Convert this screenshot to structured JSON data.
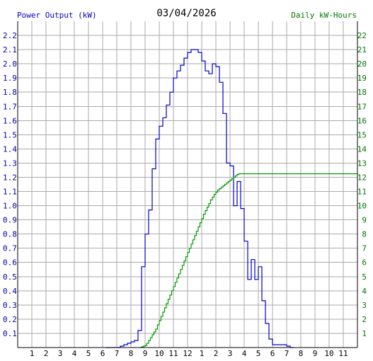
{
  "header": {
    "left_title": "Power Output (kW)",
    "date": "03/04/2026",
    "right_title": "Daily kW-Hours"
  },
  "colors": {
    "power": "#0000cc",
    "energy": "#009900",
    "grid": "#aaaaaa",
    "axis": "#000000",
    "left_axis_text": "#0000aa",
    "right_axis_text": "#007700",
    "x_axis_text": "#000000"
  },
  "chart_data": {
    "type": "line",
    "title": "03/04/2026",
    "x_tick_labels": [
      "1",
      "2",
      "3",
      "4",
      "5",
      "6",
      "7",
      "8",
      "9",
      "10",
      "11",
      "12",
      "1",
      "2",
      "3",
      "4",
      "5",
      "6",
      "7",
      "8",
      "9",
      "10",
      "11"
    ],
    "x_range_hours": [
      0,
      23.5
    ],
    "grid": true,
    "left_axis": {
      "label": "Power Output (kW)",
      "range": [
        0,
        2.3
      ],
      "ticks": [
        "0.1",
        "0.2",
        "0.3",
        "0.4",
        "0.5",
        "0.6",
        "0.7",
        "0.8",
        "0.9",
        "1.0",
        "1.1",
        "1.2",
        "1.3",
        "1.4",
        "1.5",
        "1.6",
        "1.7",
        "1.8",
        "1.9",
        "2.0",
        "2.1",
        "2.2"
      ]
    },
    "right_axis": {
      "label": "Daily kW-Hours",
      "range": [
        0,
        23
      ],
      "ticks": [
        "1",
        "2",
        "3",
        "4",
        "5",
        "6",
        "7",
        "8",
        "9",
        "10",
        "11",
        "12",
        "13",
        "14",
        "15",
        "16",
        "17",
        "18",
        "19",
        "20",
        "21",
        "22"
      ]
    },
    "series": [
      {
        "name": "Power Output (kW)",
        "axis": "left",
        "step": 0.25,
        "start_hour": 6.25,
        "values": [
          0.0,
          0.0,
          0.0,
          0.0,
          0.01,
          0.02,
          0.03,
          0.04,
          0.05,
          0.12,
          0.57,
          0.8,
          0.97,
          1.26,
          1.47,
          1.56,
          1.62,
          1.71,
          1.8,
          1.9,
          1.95,
          1.99,
          2.04,
          2.08,
          2.1,
          2.1,
          2.08,
          2.02,
          1.95,
          1.93,
          2.0,
          1.98,
          1.87,
          1.65,
          1.3,
          1.28,
          1.0,
          1.17,
          0.98,
          0.75,
          0.48,
          0.62,
          0.48,
          0.57,
          0.33,
          0.17,
          0.06,
          0.02,
          0.02,
          0.02,
          0.02,
          0.01,
          0.0
        ]
      },
      {
        "name": "Daily kW-Hours",
        "axis": "right",
        "step": 0.125,
        "start_hour": 8.625,
        "values": [
          0,
          0.05,
          0.1,
          0.15,
          0.3,
          0.5,
          0.7,
          0.9,
          1.1,
          1.3,
          1.6,
          1.9,
          2.2,
          2.5,
          2.8,
          3.1,
          3.4,
          3.7,
          4.0,
          4.3,
          4.6,
          4.9,
          5.2,
          5.5,
          5.8,
          6.1,
          6.4,
          6.7,
          7.0,
          7.3,
          7.6,
          7.9,
          8.2,
          8.5,
          8.8,
          9.1,
          9.4,
          9.65,
          9.9,
          10.15,
          10.4,
          10.6,
          10.8,
          10.95,
          11.1,
          11.2,
          11.3,
          11.4,
          11.5,
          11.6,
          11.7,
          11.8,
          11.9,
          12.0,
          12.1,
          12.2,
          12.25,
          12.25
        ]
      }
    ]
  }
}
